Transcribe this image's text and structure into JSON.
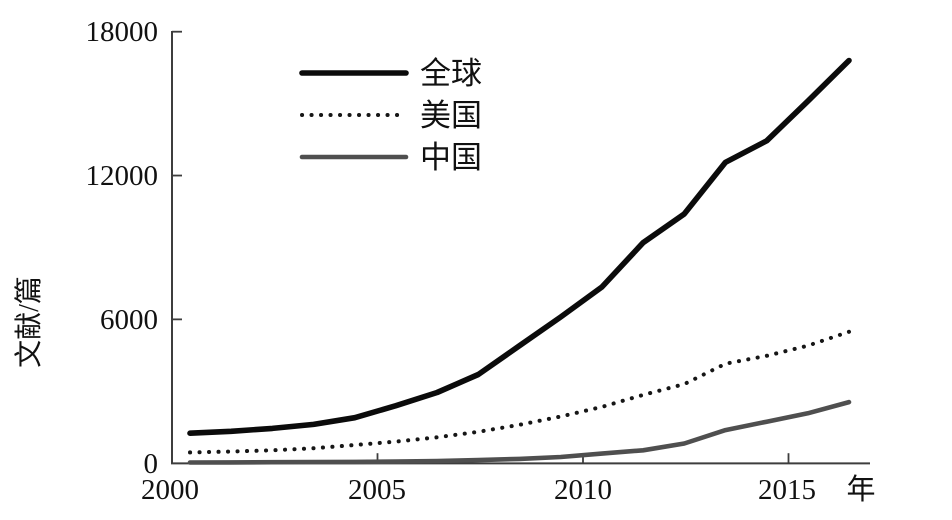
{
  "chart_data": {
    "type": "line",
    "x_label": "年",
    "y_label": "文献/篇",
    "x": [
      2000,
      2001,
      2002,
      2003,
      2004,
      2005,
      2006,
      2007,
      2008,
      2009,
      2010,
      2011,
      2012,
      2013,
      2014,
      2015,
      2016
    ],
    "x_ticks": [
      2000,
      2005,
      2010,
      2015
    ],
    "x_tick_labels": [
      "2000",
      "2005",
      "2010",
      "2015"
    ],
    "y_ticks": [
      0,
      6000,
      12000,
      18000
    ],
    "y_tick_labels": [
      "0",
      "6000",
      "12000",
      "18000"
    ],
    "xlim": [
      2000,
      2016
    ],
    "ylim": [
      0,
      18000
    ],
    "grid": false,
    "legend_position": "inside-top-left",
    "axis_color": "#3d3d3d",
    "text_color": "#111111",
    "series": [
      {
        "name": "全球",
        "line_style": "solid",
        "color": "#0b0b0b",
        "stroke_width": 5.6,
        "values": [
          1250,
          1330,
          1450,
          1620,
          1900,
          2400,
          2950,
          3700,
          4900,
          6100,
          7350,
          9200,
          10400,
          12550,
          13450,
          15100,
          16800
        ]
      },
      {
        "name": "美国",
        "line_style": "dotted",
        "color": "#161616",
        "stroke_width": 4.0,
        "values": [
          450,
          490,
          540,
          620,
          760,
          900,
          1080,
          1310,
          1600,
          1950,
          2350,
          2850,
          3300,
          4150,
          4480,
          4900,
          5480
        ]
      },
      {
        "name": "中国",
        "line_style": "solid",
        "color": "#4f4f4f",
        "stroke_width": 4.6,
        "values": [
          30,
          35,
          40,
          50,
          55,
          65,
          90,
          130,
          180,
          260,
          400,
          540,
          820,
          1380,
          1730,
          2080,
          2550
        ]
      }
    ]
  }
}
